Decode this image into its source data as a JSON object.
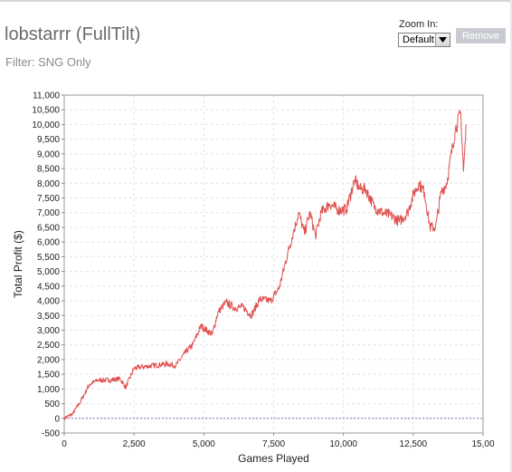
{
  "header": {
    "title": "lobstarrr (FullTilt)",
    "filter": "Filter: SNG Only"
  },
  "zoom": {
    "label": "Zoom In:",
    "selected": "Default",
    "remove_label": "Remove"
  },
  "colors": {
    "line": "#e0504e",
    "zero_line": "#7070c8",
    "grid": "#e4e4e4",
    "remove_button": "#c8ccd2"
  },
  "chart_data": {
    "type": "line",
    "xlabel": "Games Played",
    "ylabel": "Total Profit ($)",
    "xlim": [
      0,
      15000
    ],
    "ylim": [
      -500,
      11000
    ],
    "x_ticks": [
      "0",
      "2,500",
      "5,000",
      "7,500",
      "10,000",
      "12,500",
      "15,00"
    ],
    "y_ticks": [
      "-500",
      "0",
      "500",
      "1,000",
      "1,500",
      "2,000",
      "2,500",
      "3,000",
      "3,500",
      "4,000",
      "4,500",
      "5,000",
      "5,500",
      "6,000",
      "6,500",
      "7,000",
      "7,500",
      "8,000",
      "8,500",
      "9,000",
      "9,500",
      "10,000",
      "10,500",
      "11,000"
    ],
    "grid": true,
    "series": [
      {
        "x": [
          0,
          300,
          600,
          900,
          1200,
          1600,
          2000,
          2200,
          2500,
          2800,
          3200,
          3700,
          4000,
          4300,
          4600,
          4900,
          5300,
          5500,
          5800,
          6100,
          6400,
          6700,
          7000,
          7400,
          7700,
          8000,
          8200,
          8400,
          8600,
          8800,
          9000,
          9200,
          9500,
          9800,
          10100,
          10400,
          10600,
          10800,
          11100,
          11400,
          11700,
          12000,
          12300,
          12500,
          12700,
          12900,
          13100,
          13300,
          13500,
          13700,
          14000,
          14200,
          14300,
          14400
        ],
        "values": [
          0,
          150,
          600,
          1150,
          1300,
          1300,
          1350,
          1050,
          1700,
          1750,
          1800,
          1850,
          1800,
          2200,
          2500,
          3150,
          2850,
          3600,
          3950,
          3750,
          3800,
          3500,
          4050,
          4000,
          4450,
          5600,
          6300,
          7000,
          6300,
          7000,
          6200,
          7000,
          7300,
          7100,
          7100,
          8100,
          7800,
          7800,
          7200,
          7000,
          6900,
          6700,
          7000,
          7600,
          8000,
          7700,
          6500,
          6500,
          7700,
          8000,
          9800,
          10400,
          8400,
          10000
        ]
      }
    ]
  }
}
